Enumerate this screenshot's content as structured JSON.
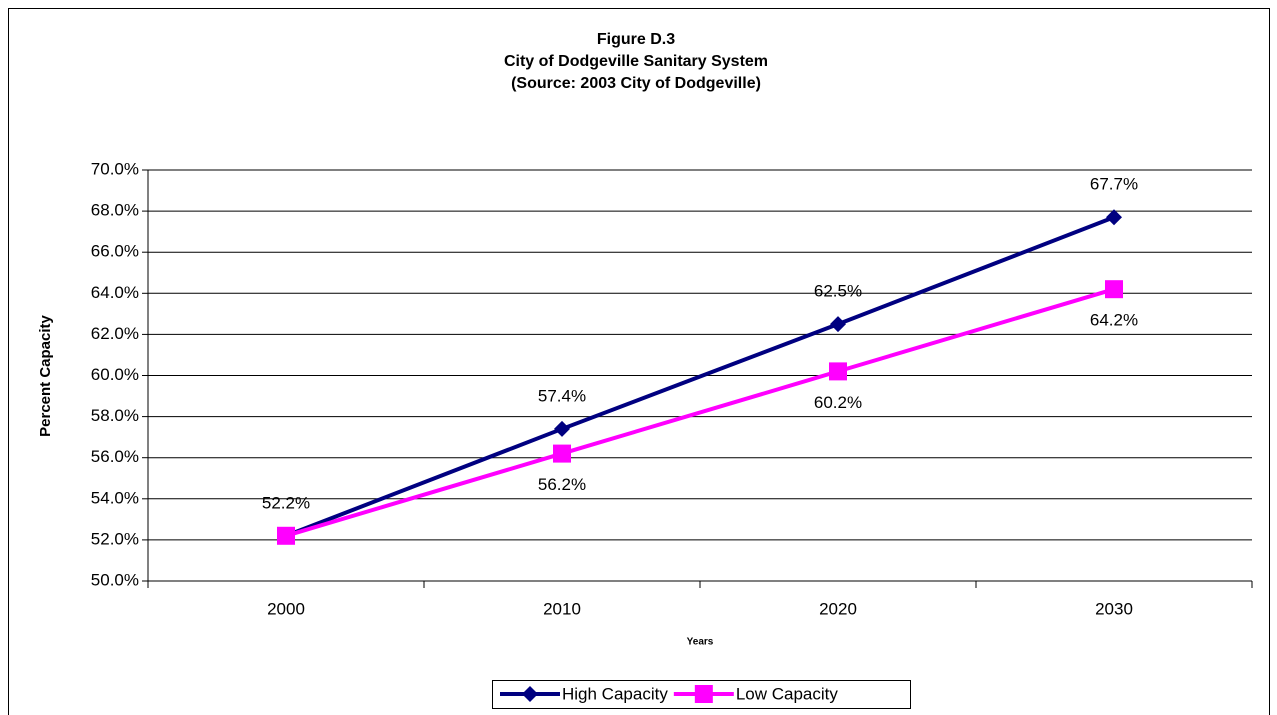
{
  "chart_data": {
    "type": "line",
    "title": [
      "Figure D.3",
      "City of Dodgeville Sanitary System",
      "(Source:  2003 City of Dodgeville)"
    ],
    "x_label": "Years",
    "y_label": "Percent Capacity",
    "categories": [
      "2000",
      "2010",
      "2020",
      "2030"
    ],
    "series": [
      {
        "name": "High Capacity",
        "color": "#000080",
        "marker": "diamond",
        "values": [
          52.2,
          57.4,
          62.5,
          67.7
        ],
        "value_labels": [
          "52.2%",
          "57.4%",
          "62.5%",
          "67.7%"
        ]
      },
      {
        "name": "Low Capacity",
        "color": "#ff00ff",
        "marker": "square",
        "values": [
          52.2,
          56.2,
          60.2,
          64.2
        ],
        "value_labels": [
          null,
          "56.2%",
          "60.2%",
          "64.2%"
        ]
      }
    ],
    "ylim": [
      50,
      70
    ],
    "yticks": [
      {
        "value": 50,
        "label": "50.0%"
      },
      {
        "value": 52,
        "label": "52.0%"
      },
      {
        "value": 54,
        "label": "54.0%"
      },
      {
        "value": 56,
        "label": "56.0%"
      },
      {
        "value": 58,
        "label": "58.0%"
      },
      {
        "value": 60,
        "label": "60.0%"
      },
      {
        "value": 62,
        "label": "62.0%"
      },
      {
        "value": 64,
        "label": "64.0%"
      },
      {
        "value": 66,
        "label": "66.0%"
      },
      {
        "value": 68,
        "label": "68.0%"
      },
      {
        "value": 70,
        "label": "70.0%"
      }
    ],
    "grid": true,
    "legend": "bottom"
  }
}
